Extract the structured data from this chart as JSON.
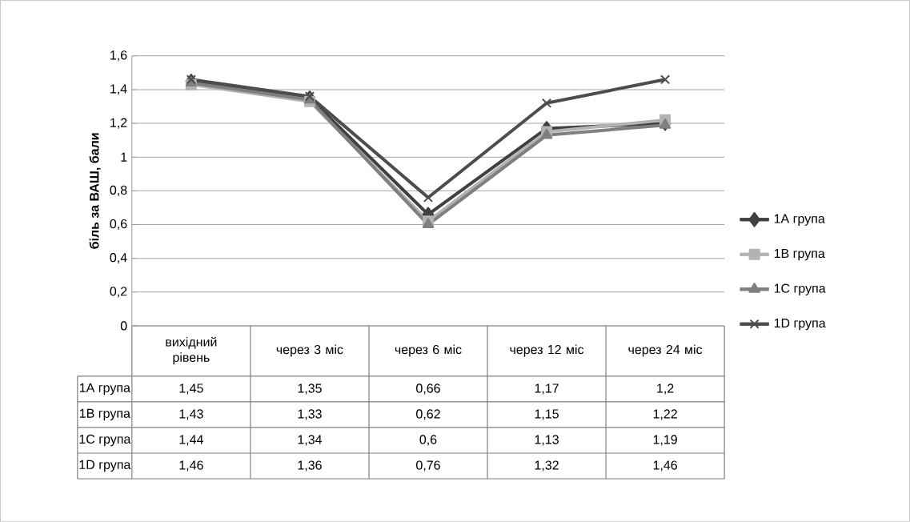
{
  "chart_data": {
    "type": "line",
    "ylabel": "біль за ВАШ, бали",
    "categories": [
      "вихідний рівень",
      "через 3 міс",
      "через 6 міс",
      "через 12 міс",
      "через 24 міс"
    ],
    "series": [
      {
        "name": "1А група",
        "color": "#404040",
        "marker": "diamond",
        "values": [
          1.45,
          1.35,
          0.66,
          1.17,
          1.2
        ],
        "value_labels": [
          "1,45",
          "1,35",
          "0,66",
          "1,17",
          "1,2"
        ]
      },
      {
        "name": "1В група",
        "color": "#b3b3b3",
        "marker": "square",
        "values": [
          1.43,
          1.33,
          0.62,
          1.15,
          1.22
        ],
        "value_labels": [
          "1,43",
          "1,33",
          "0,62",
          "1,15",
          "1,22"
        ]
      },
      {
        "name": "1С група",
        "color": "#7f7f7f",
        "marker": "triangle",
        "values": [
          1.44,
          1.34,
          0.6,
          1.13,
          1.19
        ],
        "value_labels": [
          "1,44",
          "1,34",
          "0,6",
          "1,13",
          "1,19"
        ]
      },
      {
        "name": "1D група",
        "color": "#4d4d4d",
        "marker": "cross",
        "values": [
          1.46,
          1.36,
          0.76,
          1.32,
          1.46
        ],
        "value_labels": [
          "1,46",
          "1,36",
          "0,76",
          "1,32",
          "1,46"
        ]
      }
    ],
    "ylim": [
      0,
      1.6
    ],
    "yticks": [
      0,
      {
        "value": 0.2,
        "label": "0,2"
      },
      {
        "value": 0.4,
        "label": "0,4"
      },
      {
        "value": 0.6,
        "label": "0,6"
      },
      {
        "value": 0.8,
        "label": "0,8"
      },
      1,
      {
        "value": 1.2,
        "label": "1,2"
      },
      {
        "value": 1.4,
        "label": "1,4"
      },
      {
        "value": 1.6,
        "label": "1,6"
      }
    ],
    "grid": "y",
    "legend": "right",
    "line_style": "solid"
  }
}
